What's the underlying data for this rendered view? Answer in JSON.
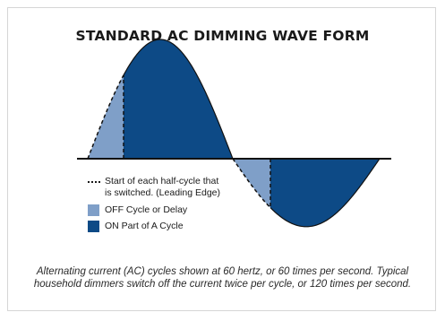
{
  "diagram": {
    "title": "STANDARD AC DIMMING WAVE FORM",
    "legend": {
      "dashed_line_label_1": "Start of each half-cycle that",
      "dashed_line_label_2": "is switched. (Leading Edge)",
      "off_label": "OFF Cycle or Delay",
      "on_label": "ON Part of A Cycle"
    },
    "colors": {
      "on": "#0d4a86",
      "off": "#7f9fc8",
      "line": "#111111"
    },
    "caption": "Alternating current (AC) cycles shown at 60 hertz, or 60 times per second. Typical household dimmers switch off the current twice per cycle, or 120 times per second."
  }
}
